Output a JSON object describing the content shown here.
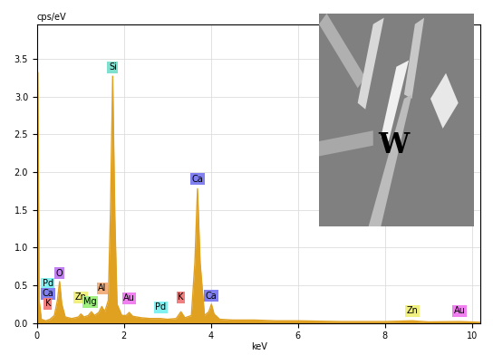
{
  "chart_data": {
    "type": "area",
    "x_label": "keV",
    "y_label": "cps/eV",
    "x": [
      0.0,
      0.02,
      0.05,
      0.1,
      0.2,
      0.3,
      0.4,
      0.47,
      0.52,
      0.57,
      0.65,
      0.8,
      0.95,
      1.01,
      1.08,
      1.18,
      1.25,
      1.32,
      1.42,
      1.49,
      1.56,
      1.64,
      1.69,
      1.74,
      1.79,
      1.84,
      1.95,
      2.05,
      2.12,
      2.2,
      2.4,
      2.6,
      2.84,
      3.0,
      3.2,
      3.31,
      3.4,
      3.55,
      3.63,
      3.69,
      3.75,
      3.85,
      3.95,
      4.01,
      4.07,
      4.2,
      4.5,
      5.0,
      5.5,
      6.0,
      6.5,
      7.0,
      7.5,
      8.0,
      8.63,
      9.0,
      9.71,
      10.2
    ],
    "values": [
      0.0,
      3.32,
      0.3,
      0.05,
      0.03,
      0.05,
      0.1,
      0.3,
      0.55,
      0.25,
      0.08,
      0.06,
      0.08,
      0.12,
      0.08,
      0.1,
      0.15,
      0.1,
      0.14,
      0.22,
      0.15,
      0.3,
      1.5,
      3.27,
      1.4,
      0.25,
      0.1,
      0.1,
      0.14,
      0.09,
      0.07,
      0.06,
      0.06,
      0.05,
      0.06,
      0.15,
      0.07,
      0.1,
      0.8,
      1.78,
      0.8,
      0.1,
      0.15,
      0.25,
      0.12,
      0.05,
      0.04,
      0.04,
      0.03,
      0.03,
      0.025,
      0.02,
      0.02,
      0.02,
      0.03,
      0.015,
      0.02,
      0.01
    ],
    "color": "#e0a020",
    "xlim": [
      0,
      10.2
    ],
    "ylim": [
      0,
      3.95
    ],
    "xticks": [
      0,
      2,
      4,
      6,
      8,
      10
    ],
    "yticks": [
      0.0,
      0.5,
      1.0,
      1.5,
      2.0,
      2.5,
      3.0,
      3.5
    ],
    "grid": true,
    "annotations": [
      {
        "text": "Si",
        "x": 1.74,
        "y": 3.33,
        "color": "#7fe0d0"
      },
      {
        "text": "Ca",
        "x": 3.69,
        "y": 1.85,
        "color": "#8080f0"
      },
      {
        "text": "Ca",
        "x": 4.01,
        "y": 0.3,
        "color": "#8080f0"
      },
      {
        "text": "O",
        "x": 0.52,
        "y": 0.6,
        "color": "#c080f0"
      },
      {
        "text": "Pd",
        "x": 0.25,
        "y": 0.46,
        "color": "#80f0f0"
      },
      {
        "text": "Ca",
        "x": 0.25,
        "y": 0.33,
        "color": "#8080f0"
      },
      {
        "text": "K",
        "x": 0.25,
        "y": 0.2,
        "color": "#f08080"
      },
      {
        "text": "Zn",
        "x": 1.0,
        "y": 0.28,
        "color": "#f0f080"
      },
      {
        "text": "Mg",
        "x": 1.22,
        "y": 0.22,
        "color": "#a0f080"
      },
      {
        "text": "Al",
        "x": 1.5,
        "y": 0.4,
        "color": "#f0b080"
      },
      {
        "text": "Au",
        "x": 2.12,
        "y": 0.27,
        "color": "#f080f0"
      },
      {
        "text": "Pd",
        "x": 2.84,
        "y": 0.15,
        "color": "#80f0f0"
      },
      {
        "text": "K",
        "x": 3.31,
        "y": 0.28,
        "color": "#f08080"
      },
      {
        "text": "Zn",
        "x": 8.63,
        "y": 0.1,
        "color": "#f0f080"
      },
      {
        "text": "Au",
        "x": 9.71,
        "y": 0.1,
        "color": "#f080f0"
      }
    ],
    "inset_label": "W"
  }
}
